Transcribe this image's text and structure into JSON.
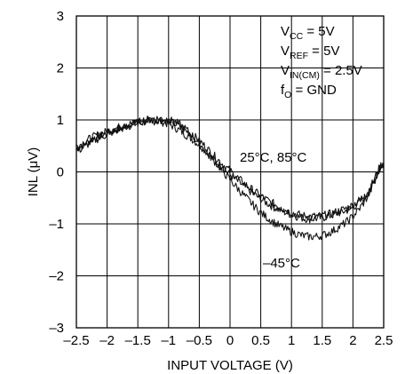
{
  "chart_data": {
    "type": "line",
    "title": "",
    "xlabel": "INPUT VOLTAGE (V)",
    "ylabel": "INL (μV)",
    "xlim": [
      -2.5,
      2.5
    ],
    "ylim": [
      -3,
      3
    ],
    "x_ticks": [
      -2.5,
      -2,
      -1.5,
      -1,
      -0.5,
      0,
      0.5,
      1,
      1.5,
      2,
      2.5
    ],
    "x_tick_labels": [
      "–2.5",
      "–2",
      "–1.5",
      "–1",
      "–0.5",
      "0",
      "0.5",
      "1",
      "1.5",
      "2",
      "2.5"
    ],
    "y_ticks": [
      -3,
      -2,
      -1,
      0,
      1,
      2,
      3
    ],
    "y_tick_labels": [
      "–3",
      "–2",
      "–1",
      "0",
      "1",
      "2",
      "3"
    ],
    "grid": true,
    "line_color": "#111111",
    "conditions": {
      "vcc": {
        "main": "V",
        "sub": "CC",
        "tail": " = 5V"
      },
      "vref": {
        "main": "V",
        "sub": "REF",
        "tail": " = 5V"
      },
      "vincm": {
        "main": "V",
        "sub": "IN(CM)",
        "tail": " = 2.5V"
      },
      "fo": {
        "main": "f",
        "sub": "O",
        "tail": " = GND"
      }
    },
    "annotations": {
      "upper_label": "25°C, 85°C",
      "lower_label": "–45°C"
    },
    "series": [
      {
        "x": [
          -2.5,
          -2.25,
          -2.0,
          -1.75,
          -1.5,
          -1.25,
          -1.0,
          -0.75,
          -0.5,
          -0.25,
          0.0,
          0.25,
          0.5,
          0.75,
          1.0,
          1.25,
          1.5,
          1.75,
          2.0,
          2.25,
          2.5
        ],
        "values": [
          0.45,
          0.62,
          0.74,
          0.85,
          0.93,
          0.98,
          0.92,
          0.74,
          0.52,
          0.22,
          -0.05,
          -0.3,
          -0.52,
          -0.7,
          -0.82,
          -0.9,
          -0.88,
          -0.8,
          -0.68,
          -0.4,
          0.15
        ]
      },
      {
        "x": [
          -2.5,
          -2.25,
          -2.0,
          -1.75,
          -1.5,
          -1.25,
          -1.0,
          -0.75,
          -0.5,
          -0.25,
          0.0,
          0.25,
          0.5,
          0.75,
          1.0,
          1.25,
          1.5,
          1.75,
          2.0,
          2.25,
          2.5
        ],
        "values": [
          0.5,
          0.66,
          0.78,
          0.88,
          0.96,
          1.0,
          0.98,
          0.82,
          0.6,
          0.3,
          0.02,
          -0.24,
          -0.46,
          -0.64,
          -0.78,
          -0.85,
          -0.84,
          -0.76,
          -0.63,
          -0.36,
          0.2
        ]
      },
      {
        "x": [
          -2.5,
          -2.25,
          -2.0,
          -1.75,
          -1.5,
          -1.25,
          -1.0,
          -0.75,
          -0.5,
          -0.25,
          0.0,
          0.25,
          0.5,
          0.75,
          1.0,
          1.25,
          1.5,
          1.75,
          2.0,
          2.25,
          2.5
        ],
        "values": [
          0.4,
          0.58,
          0.72,
          0.84,
          0.95,
          1.02,
          1.0,
          0.85,
          0.55,
          0.2,
          -0.15,
          -0.48,
          -0.78,
          -1.0,
          -1.15,
          -1.24,
          -1.22,
          -1.08,
          -0.85,
          -0.45,
          0.18
        ]
      }
    ]
  }
}
